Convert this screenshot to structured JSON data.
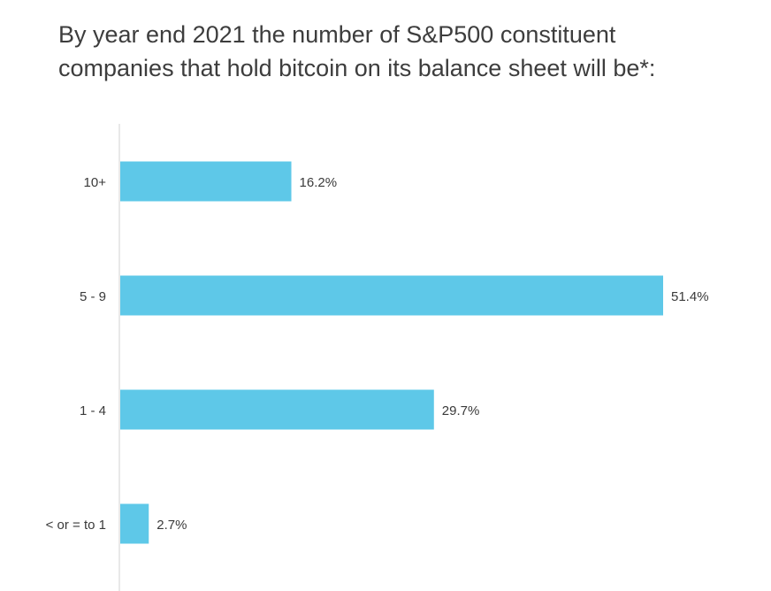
{
  "chart_data": {
    "type": "bar",
    "orientation": "horizontal",
    "title": "By year end 2021 the number of S&P500 constituent companies that hold bitcoin on its balance sheet will be*:",
    "title_lines": [
      "By year end 2021 the number of S&P500 constituent",
      "companies that hold bitcoin on its balance sheet will be*:"
    ],
    "categories": [
      "10+",
      "5 - 9",
      "1 - 4",
      "< or = to 1"
    ],
    "values": [
      16.2,
      51.4,
      29.7,
      2.7
    ],
    "value_labels": [
      "16.2%",
      "51.4%",
      "29.7%",
      "2.7%"
    ],
    "unit": "%",
    "xlim": [
      0,
      51.4
    ],
    "grid": false,
    "legend": "none",
    "colors": {
      "bar": "#5ec8e8",
      "axis": "#e2e2e2",
      "label_text": "#3a3a3a",
      "title_text": "#3d3d3d"
    }
  }
}
